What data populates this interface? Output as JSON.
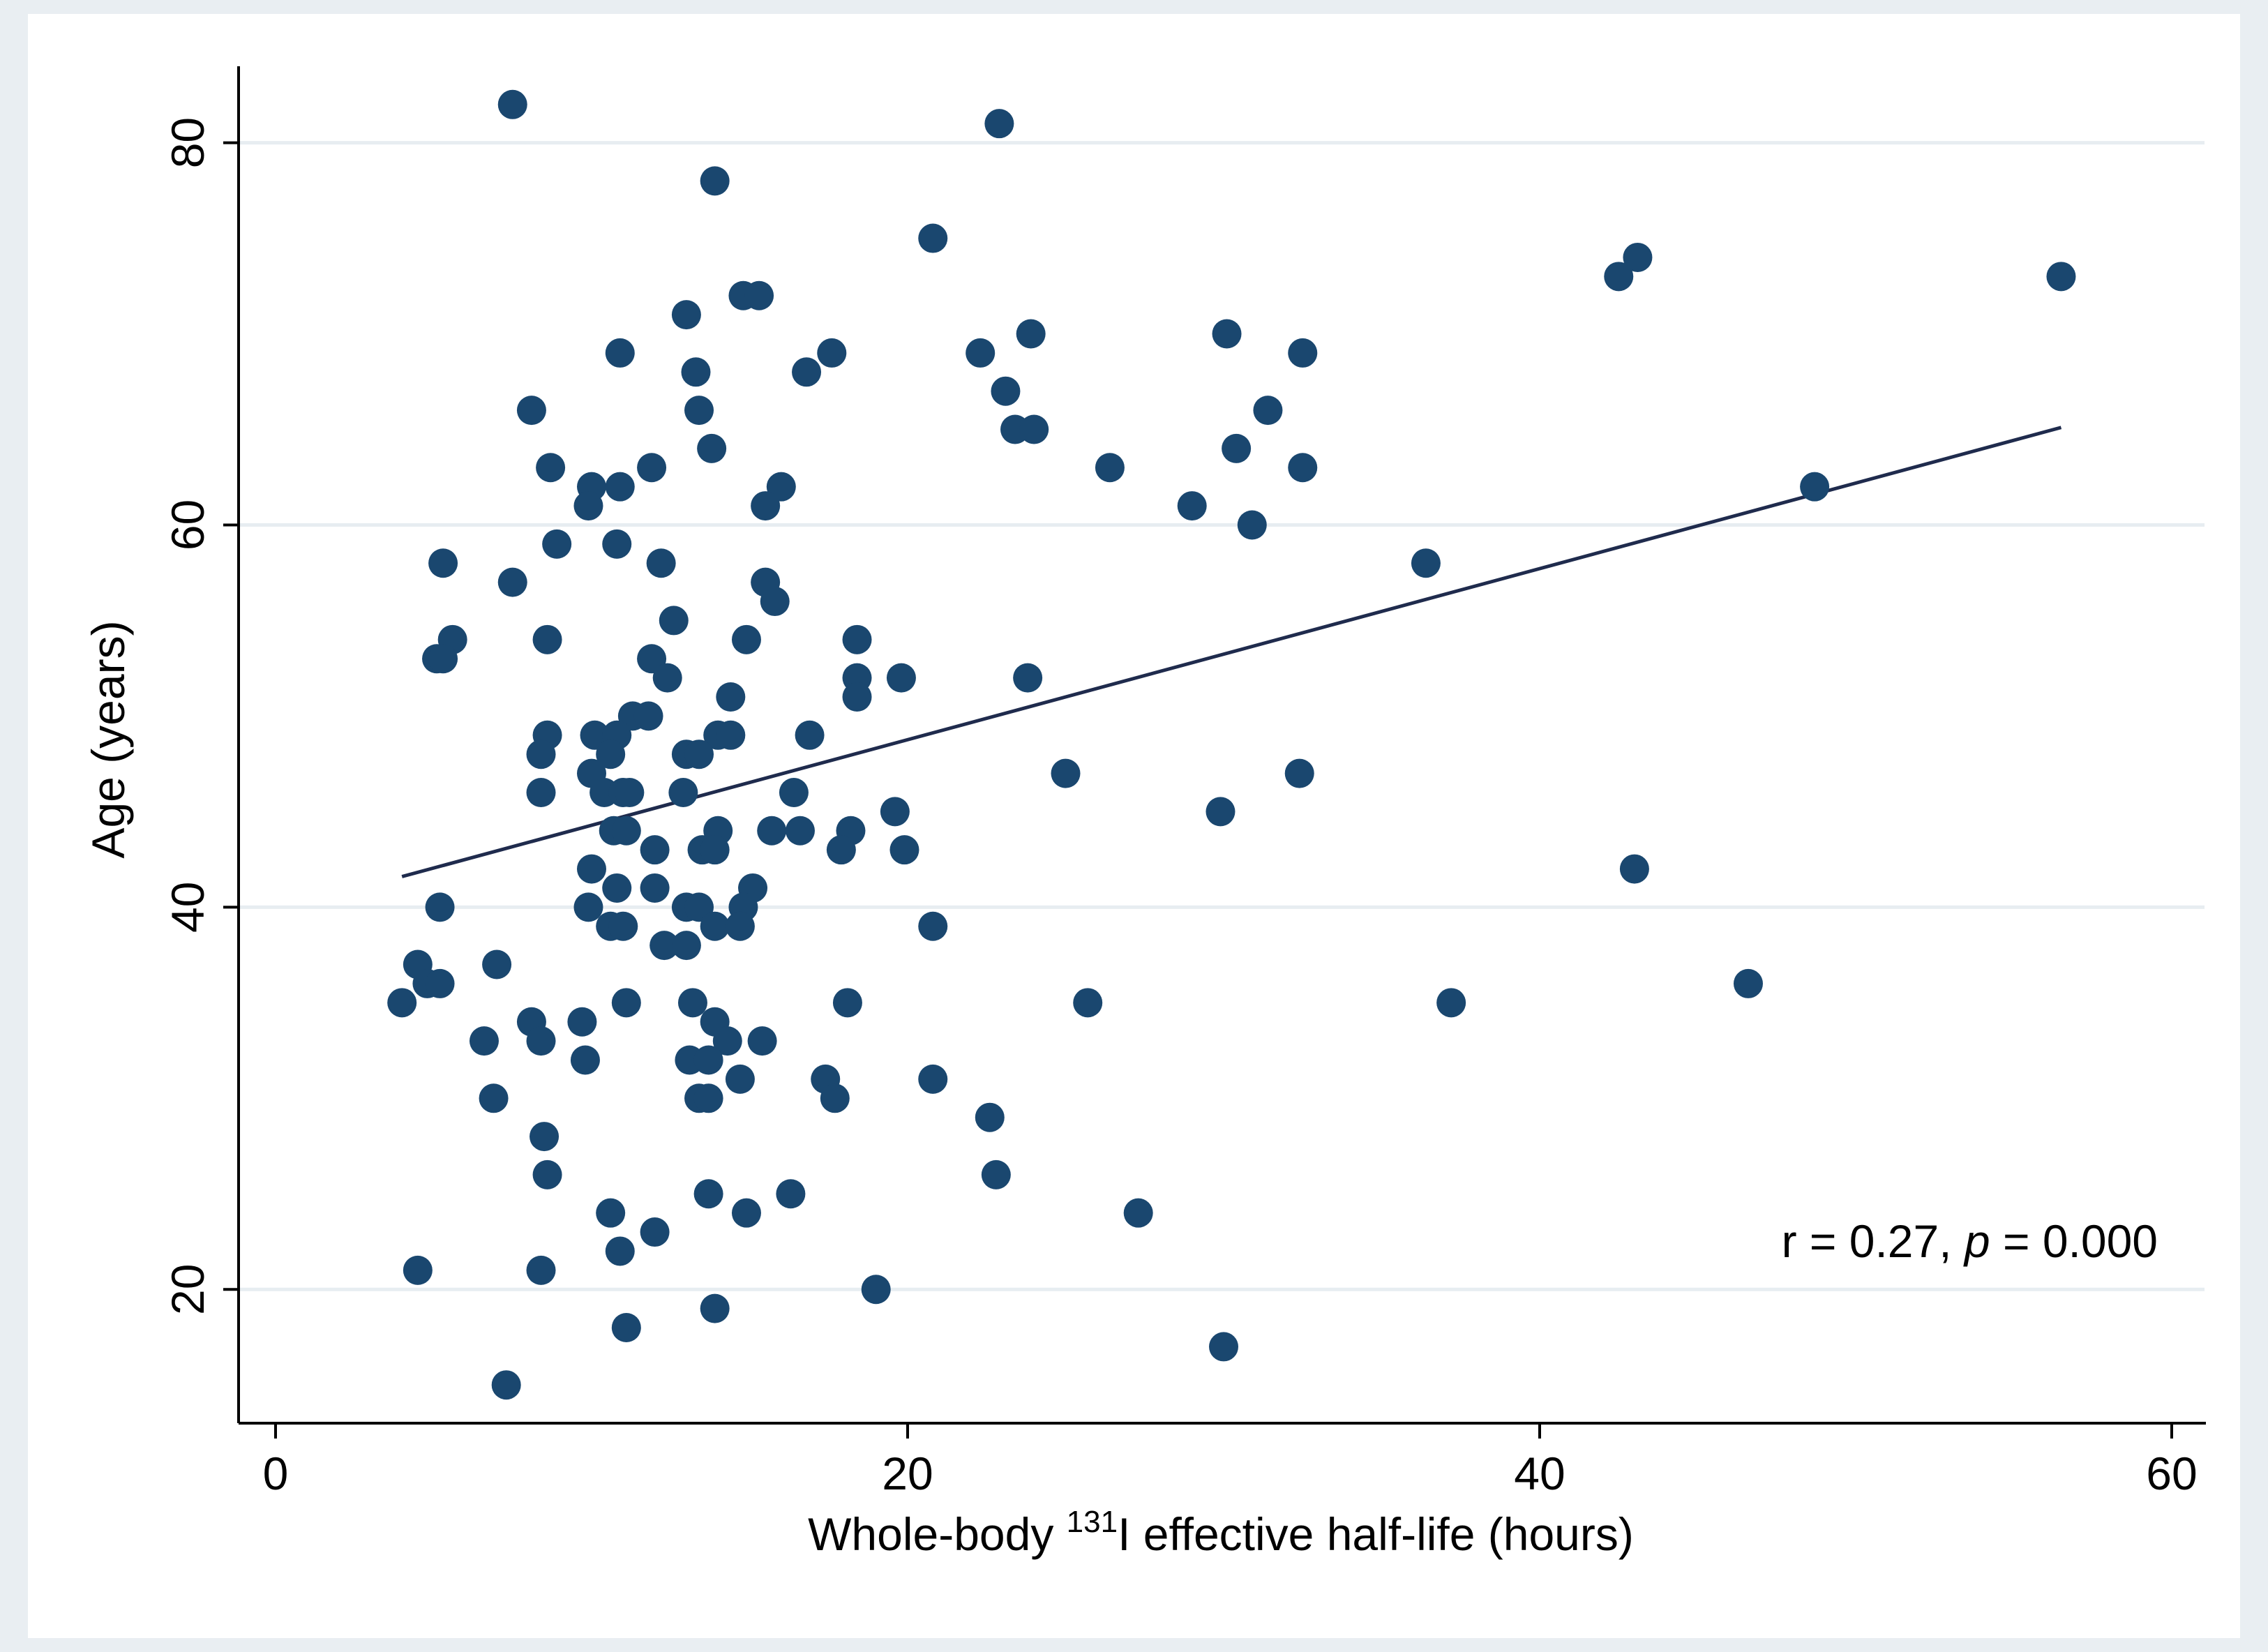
{
  "colors": {
    "outer_background": "#e9eef2",
    "plot_background": "#ffffff",
    "gridline": "#e7edf1",
    "marker": "#1a476f",
    "fit_line": "#1f2b4d",
    "axis": "#000000",
    "text": "#000000"
  },
  "chart_data": {
    "type": "scatter",
    "title": "",
    "xlabel": {
      "prefix": "Whole-body ",
      "superscript": "131",
      "suffix": "I effective half-life (hours)"
    },
    "ylabel": "Age (years)",
    "xlim": [
      0,
      60
    ],
    "ylim": [
      13,
      84
    ],
    "xticks": [
      0,
      20,
      40,
      60
    ],
    "xtick_labels": [
      "0",
      "20",
      "40",
      "60"
    ],
    "yticks": [
      20,
      40,
      60,
      80
    ],
    "ytick_labels": [
      "20",
      "40",
      "60",
      "80"
    ],
    "grid": "horizontal",
    "annotation": {
      "pre": "r = 0.27, ",
      "italic": "p",
      "post": " = 0.000"
    },
    "fit_line": {
      "x": [
        4,
        56.5
      ],
      "y": [
        41.6,
        65.1
      ]
    },
    "points": [
      [
        7.5,
        82
      ],
      [
        22.9,
        81
      ],
      [
        13.9,
        78
      ],
      [
        20.8,
        75
      ],
      [
        43.1,
        74
      ],
      [
        42.5,
        73
      ],
      [
        56.5,
        73
      ],
      [
        14.8,
        72
      ],
      [
        15.3,
        72
      ],
      [
        13.0,
        71
      ],
      [
        10.9,
        69
      ],
      [
        17.6,
        69
      ],
      [
        22.3,
        69
      ],
      [
        32.5,
        69
      ],
      [
        23.9,
        70
      ],
      [
        30.1,
        70
      ],
      [
        13.3,
        68
      ],
      [
        16.8,
        68
      ],
      [
        23.1,
        67
      ],
      [
        8.1,
        66
      ],
      [
        13.4,
        66
      ],
      [
        31.4,
        66
      ],
      [
        23.4,
        65
      ],
      [
        24.0,
        65
      ],
      [
        13.8,
        64
      ],
      [
        30.4,
        64
      ],
      [
        8.7,
        63
      ],
      [
        11.9,
        63
      ],
      [
        26.4,
        63
      ],
      [
        32.5,
        63
      ],
      [
        10.0,
        62
      ],
      [
        10.9,
        62
      ],
      [
        16.0,
        62
      ],
      [
        48.7,
        62
      ],
      [
        9.9,
        61
      ],
      [
        15.5,
        61
      ],
      [
        29.0,
        61
      ],
      [
        30.9,
        60
      ],
      [
        8.9,
        59
      ],
      [
        10.8,
        59
      ],
      [
        5.3,
        58
      ],
      [
        12.2,
        58
      ],
      [
        36.4,
        58
      ],
      [
        7.5,
        57
      ],
      [
        15.5,
        57
      ],
      [
        15.8,
        56
      ],
      [
        12.6,
        55
      ],
      [
        5.6,
        54
      ],
      [
        8.6,
        54
      ],
      [
        14.9,
        54
      ],
      [
        18.4,
        54
      ],
      [
        5.1,
        53
      ],
      [
        5.3,
        53
      ],
      [
        11.9,
        53
      ],
      [
        12.4,
        52
      ],
      [
        18.4,
        52
      ],
      [
        19.8,
        52
      ],
      [
        23.8,
        52
      ],
      [
        14.4,
        51
      ],
      [
        18.4,
        51
      ],
      [
        11.3,
        50
      ],
      [
        11.8,
        50
      ],
      [
        8.6,
        49
      ],
      [
        10.1,
        49
      ],
      [
        10.8,
        49
      ],
      [
        14.0,
        49
      ],
      [
        14.4,
        49
      ],
      [
        16.9,
        49
      ],
      [
        8.4,
        48
      ],
      [
        10.6,
        48
      ],
      [
        13.0,
        48
      ],
      [
        13.4,
        48
      ],
      [
        10.0,
        47
      ],
      [
        25.0,
        47
      ],
      [
        32.4,
        47
      ],
      [
        8.4,
        46
      ],
      [
        10.4,
        46
      ],
      [
        11.0,
        46
      ],
      [
        11.2,
        46
      ],
      [
        12.9,
        46
      ],
      [
        16.4,
        46
      ],
      [
        19.6,
        45
      ],
      [
        29.9,
        45
      ],
      [
        10.7,
        44
      ],
      [
        11.1,
        44
      ],
      [
        14.0,
        44
      ],
      [
        15.7,
        44
      ],
      [
        16.6,
        44
      ],
      [
        18.2,
        44
      ],
      [
        12.0,
        43
      ],
      [
        13.5,
        43
      ],
      [
        13.9,
        43
      ],
      [
        17.9,
        43
      ],
      [
        19.9,
        43
      ],
      [
        43.0,
        42
      ],
      [
        10.0,
        42
      ],
      [
        10.8,
        41
      ],
      [
        12.0,
        41
      ],
      [
        15.1,
        41
      ],
      [
        5.2,
        40
      ],
      [
        9.9,
        40
      ],
      [
        13.0,
        40
      ],
      [
        13.4,
        40
      ],
      [
        14.8,
        40
      ],
      [
        10.6,
        39
      ],
      [
        11.0,
        39
      ],
      [
        13.9,
        39
      ],
      [
        14.7,
        39
      ],
      [
        20.8,
        39
      ],
      [
        12.3,
        38
      ],
      [
        13.0,
        38
      ],
      [
        4.5,
        37
      ],
      [
        7.0,
        37
      ],
      [
        4.8,
        36
      ],
      [
        5.2,
        36
      ],
      [
        46.6,
        36
      ],
      [
        4.0,
        35
      ],
      [
        11.1,
        35
      ],
      [
        13.2,
        35
      ],
      [
        18.1,
        35
      ],
      [
        25.7,
        35
      ],
      [
        37.2,
        35
      ],
      [
        8.1,
        34
      ],
      [
        9.7,
        34
      ],
      [
        13.9,
        34
      ],
      [
        6.6,
        33
      ],
      [
        8.4,
        33
      ],
      [
        14.3,
        33
      ],
      [
        15.4,
        33
      ],
      [
        9.8,
        32
      ],
      [
        13.1,
        32
      ],
      [
        13.7,
        32
      ],
      [
        14.7,
        31
      ],
      [
        17.4,
        31
      ],
      [
        20.8,
        31
      ],
      [
        6.9,
        30
      ],
      [
        13.4,
        30
      ],
      [
        13.7,
        30
      ],
      [
        17.7,
        30
      ],
      [
        22.6,
        29
      ],
      [
        8.5,
        28
      ],
      [
        8.6,
        26
      ],
      [
        22.8,
        26
      ],
      [
        13.7,
        25
      ],
      [
        16.3,
        25
      ],
      [
        10.6,
        24
      ],
      [
        14.9,
        24
      ],
      [
        27.3,
        24
      ],
      [
        12.0,
        23
      ],
      [
        4.5,
        21
      ],
      [
        8.4,
        21
      ],
      [
        10.9,
        22
      ],
      [
        19.0,
        20
      ],
      [
        13.9,
        19
      ],
      [
        11.1,
        18
      ],
      [
        30.0,
        17
      ],
      [
        7.3,
        15
      ]
    ]
  }
}
